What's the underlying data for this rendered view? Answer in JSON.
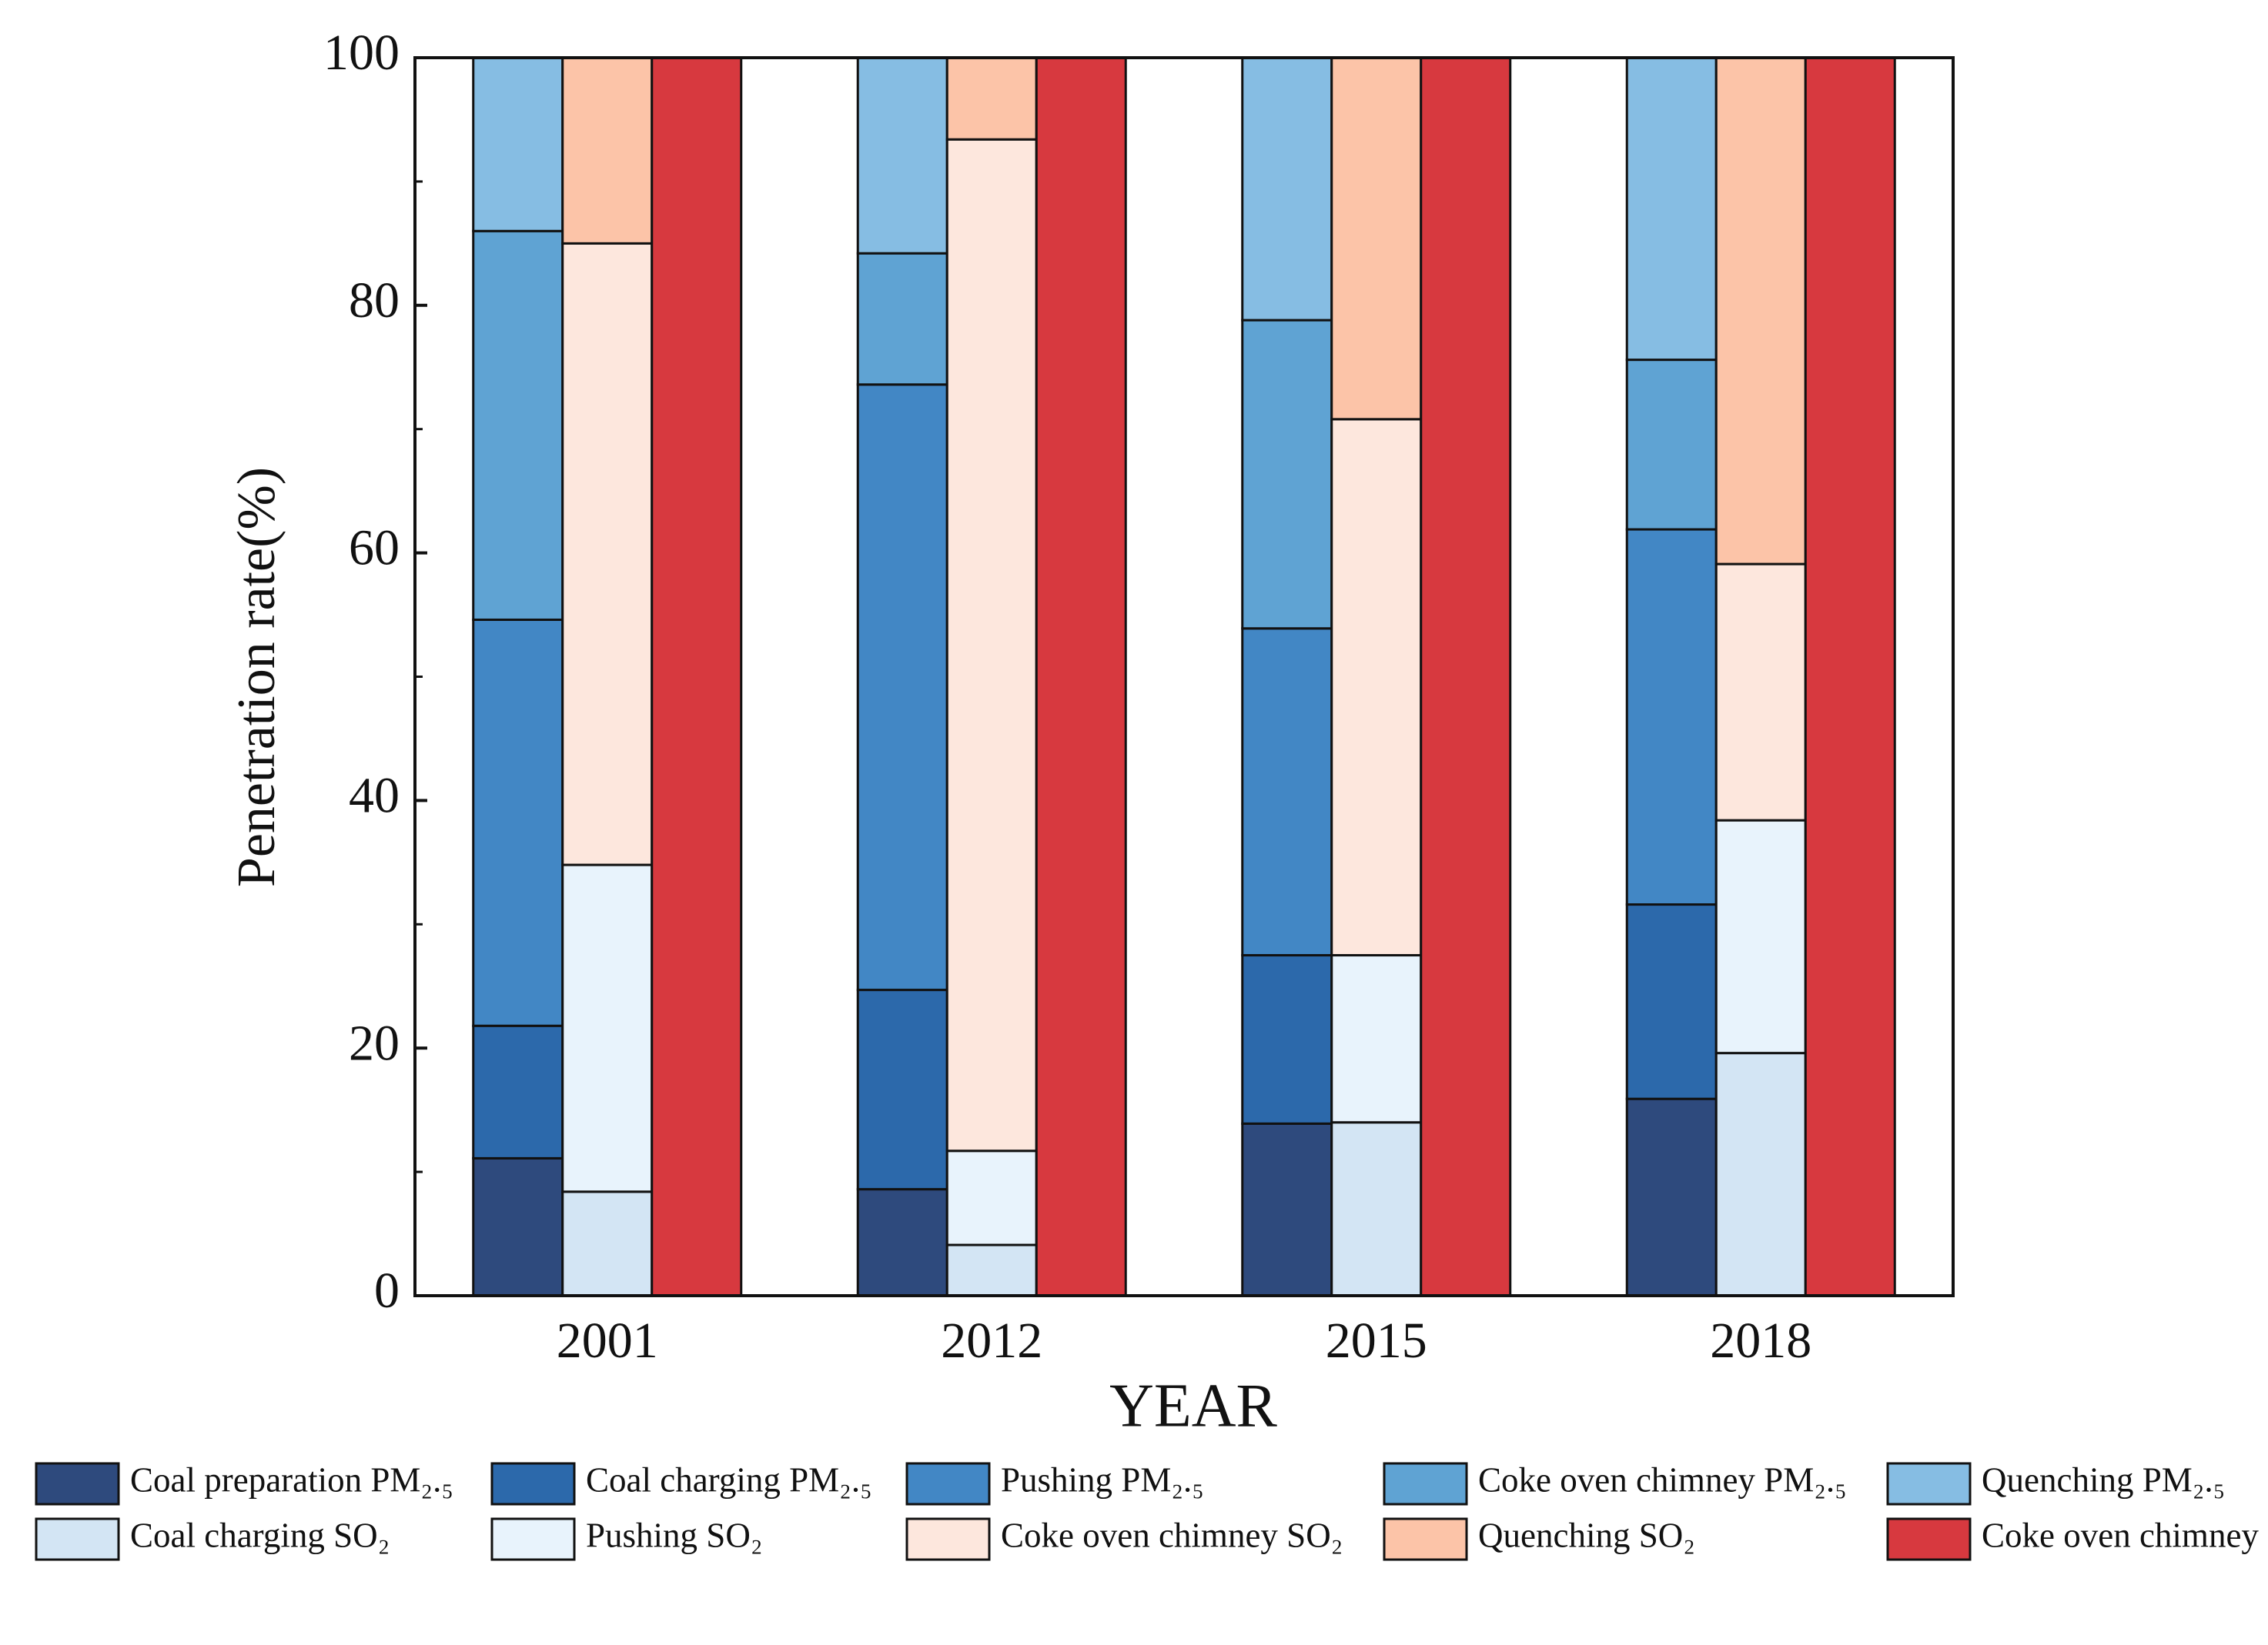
{
  "chart_data": {
    "type": "stacked-grouped-bar",
    "x_label": "YEAR",
    "y_label": "Penetration rate(%)",
    "categories": [
      "2001",
      "2012",
      "2015",
      "2018"
    ],
    "ylim": [
      0,
      100
    ],
    "yticks": [
      0,
      20,
      40,
      60,
      80,
      100
    ],
    "legend_columns": 5,
    "series": [
      {
        "name": "Coal preparation PM₂.₅",
        "stack": 0,
        "color": "#2e4a7d",
        "values": [
          11.1,
          8.6,
          13.9,
          15.9
        ]
      },
      {
        "name": "Coal charging PM₂.₅",
        "stack": 0,
        "color": "#2c69ab",
        "values": [
          10.7,
          16.1,
          13.6,
          15.7
        ]
      },
      {
        "name": "Pushing PM₂.₅",
        "stack": 0,
        "color": "#4287c5",
        "values": [
          32.8,
          48.9,
          26.4,
          30.3
        ]
      },
      {
        "name": "Coke oven chimney PM₂.₅",
        "stack": 0,
        "color": "#5fa3d3",
        "values": [
          31.4,
          10.6,
          24.9,
          13.7
        ]
      },
      {
        "name": "Quenching PM₂.₅",
        "stack": 0,
        "color": "#86bde3",
        "values": [
          14.0,
          15.8,
          21.2,
          24.4
        ]
      },
      {
        "name": "Coal charging SO₂",
        "stack": 1,
        "color": "#d3e5f4",
        "values": [
          8.4,
          4.1,
          14.0,
          19.6
        ]
      },
      {
        "name": "Pushing SO₂",
        "stack": 1,
        "color": "#e8f3fc",
        "values": [
          26.4,
          7.6,
          13.5,
          18.8
        ]
      },
      {
        "name": "Coke oven chimney SO₂",
        "stack": 1,
        "color": "#fde7dd",
        "values": [
          50.2,
          81.7,
          43.3,
          20.7
        ]
      },
      {
        "name": "Quenching SO₂",
        "stack": 1,
        "color": "#fcc4a8",
        "values": [
          15.0,
          6.6,
          29.2,
          40.9
        ]
      },
      {
        "name": "Coke oven chimney NOₓ",
        "stack": 2,
        "color": "#d7393f",
        "values": [
          100,
          100,
          100,
          100
        ]
      }
    ]
  }
}
